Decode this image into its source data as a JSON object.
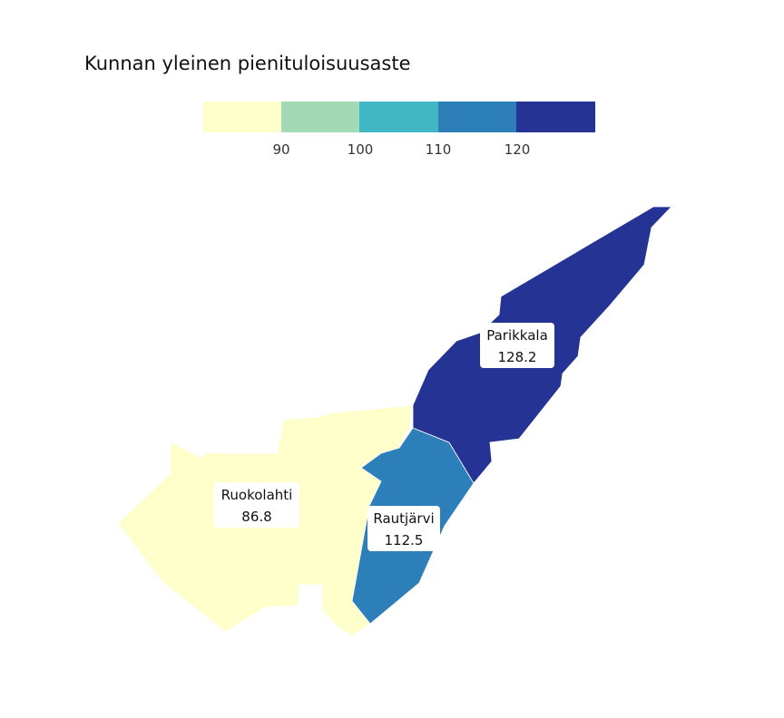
{
  "title": "Kunnan yleinen pienituloisuusaste",
  "legend": {
    "bins": [
      {
        "min": null,
        "max": 90,
        "color": "#ffffcc"
      },
      {
        "min": 90,
        "max": 100,
        "color": "#a1dab4"
      },
      {
        "min": 100,
        "max": 110,
        "color": "#41b6c4"
      },
      {
        "min": 110,
        "max": 120,
        "color": "#2c7fb8"
      },
      {
        "min": 120,
        "max": null,
        "color": "#253494"
      }
    ],
    "ticks": [
      "90",
      "100",
      "110",
      "120"
    ]
  },
  "regions": [
    {
      "id": "ruokolahti",
      "name": "Ruokolahti",
      "value": "86.8",
      "color": "#ffffcc"
    },
    {
      "id": "rautjarvi",
      "name": "Rautjärvi",
      "value": "112.5",
      "color": "#2c7fb8"
    },
    {
      "id": "parikkala",
      "name": "Parikkala",
      "value": "128.2",
      "color": "#253494"
    }
  ]
}
